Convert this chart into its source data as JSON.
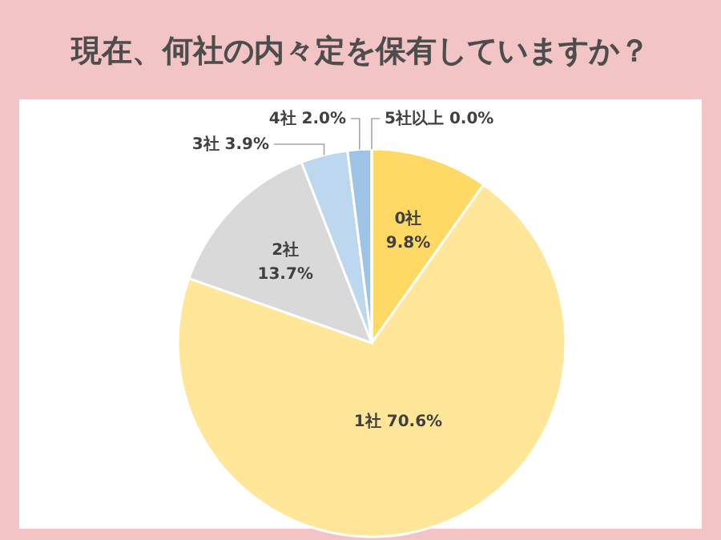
{
  "chart_data": {
    "type": "pie",
    "title": "現在、何社の内々定を保有していますか？",
    "categories": [
      "0社",
      "1社",
      "2社",
      "3社",
      "4社",
      "5社以上"
    ],
    "values": [
      9.8,
      70.6,
      13.7,
      3.9,
      2.0,
      0.0
    ],
    "colors": [
      "#ffd966",
      "#ffe699",
      "#d9d9d9",
      "#bdd7ee",
      "#9dc3e6",
      "#5b9bd5"
    ],
    "value_labels": [
      "9.8%",
      "70.6%",
      "13.7%",
      "3.9%",
      "2.0%",
      "0.0%"
    ]
  }
}
